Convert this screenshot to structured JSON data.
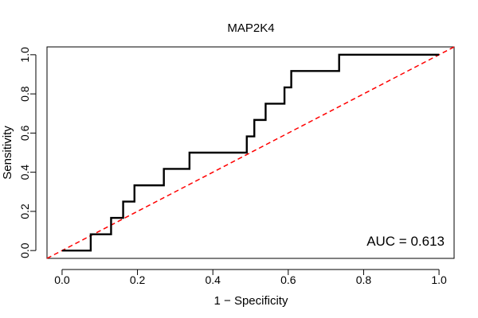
{
  "chart_data": {
    "type": "line",
    "title": "MAP2K4",
    "xlabel": "1 − Specificity",
    "ylabel": "Sensitivity",
    "xlim": [
      -0.04,
      1.04
    ],
    "ylim": [
      -0.04,
      1.04
    ],
    "x_ticks": [
      0.0,
      0.2,
      0.4,
      0.6,
      0.8,
      1.0
    ],
    "x_tick_labels": [
      "0.0",
      "0.2",
      "0.4",
      "0.6",
      "0.8",
      "1.0"
    ],
    "y_ticks": [
      0.0,
      0.2,
      0.4,
      0.6,
      0.8,
      1.0
    ],
    "y_tick_labels": [
      "0.0",
      "0.2",
      "0.4",
      "0.6",
      "0.8",
      "1.0"
    ],
    "grid": false,
    "series": [
      {
        "name": "ROC",
        "color": "#000000",
        "style": "solid",
        "x": [
          0.0,
          0.076,
          0.076,
          0.13,
          0.13,
          0.162,
          0.162,
          0.192,
          0.192,
          0.27,
          0.27,
          0.338,
          0.338,
          0.49,
          0.49,
          0.51,
          0.51,
          0.54,
          0.54,
          0.59,
          0.59,
          0.608,
          0.608,
          0.735,
          0.735,
          1.0
        ],
        "y": [
          0.0,
          0.0,
          0.083,
          0.083,
          0.167,
          0.167,
          0.25,
          0.25,
          0.333,
          0.333,
          0.417,
          0.417,
          0.5,
          0.5,
          0.583,
          0.583,
          0.667,
          0.667,
          0.75,
          0.75,
          0.833,
          0.833,
          0.917,
          0.917,
          1.0,
          1.0
        ]
      },
      {
        "name": "Reference",
        "color": "#ff0000",
        "style": "dashed",
        "x": [
          -0.04,
          1.04
        ],
        "y": [
          -0.04,
          1.04
        ]
      }
    ],
    "annotation": "AUC = 0.613"
  }
}
